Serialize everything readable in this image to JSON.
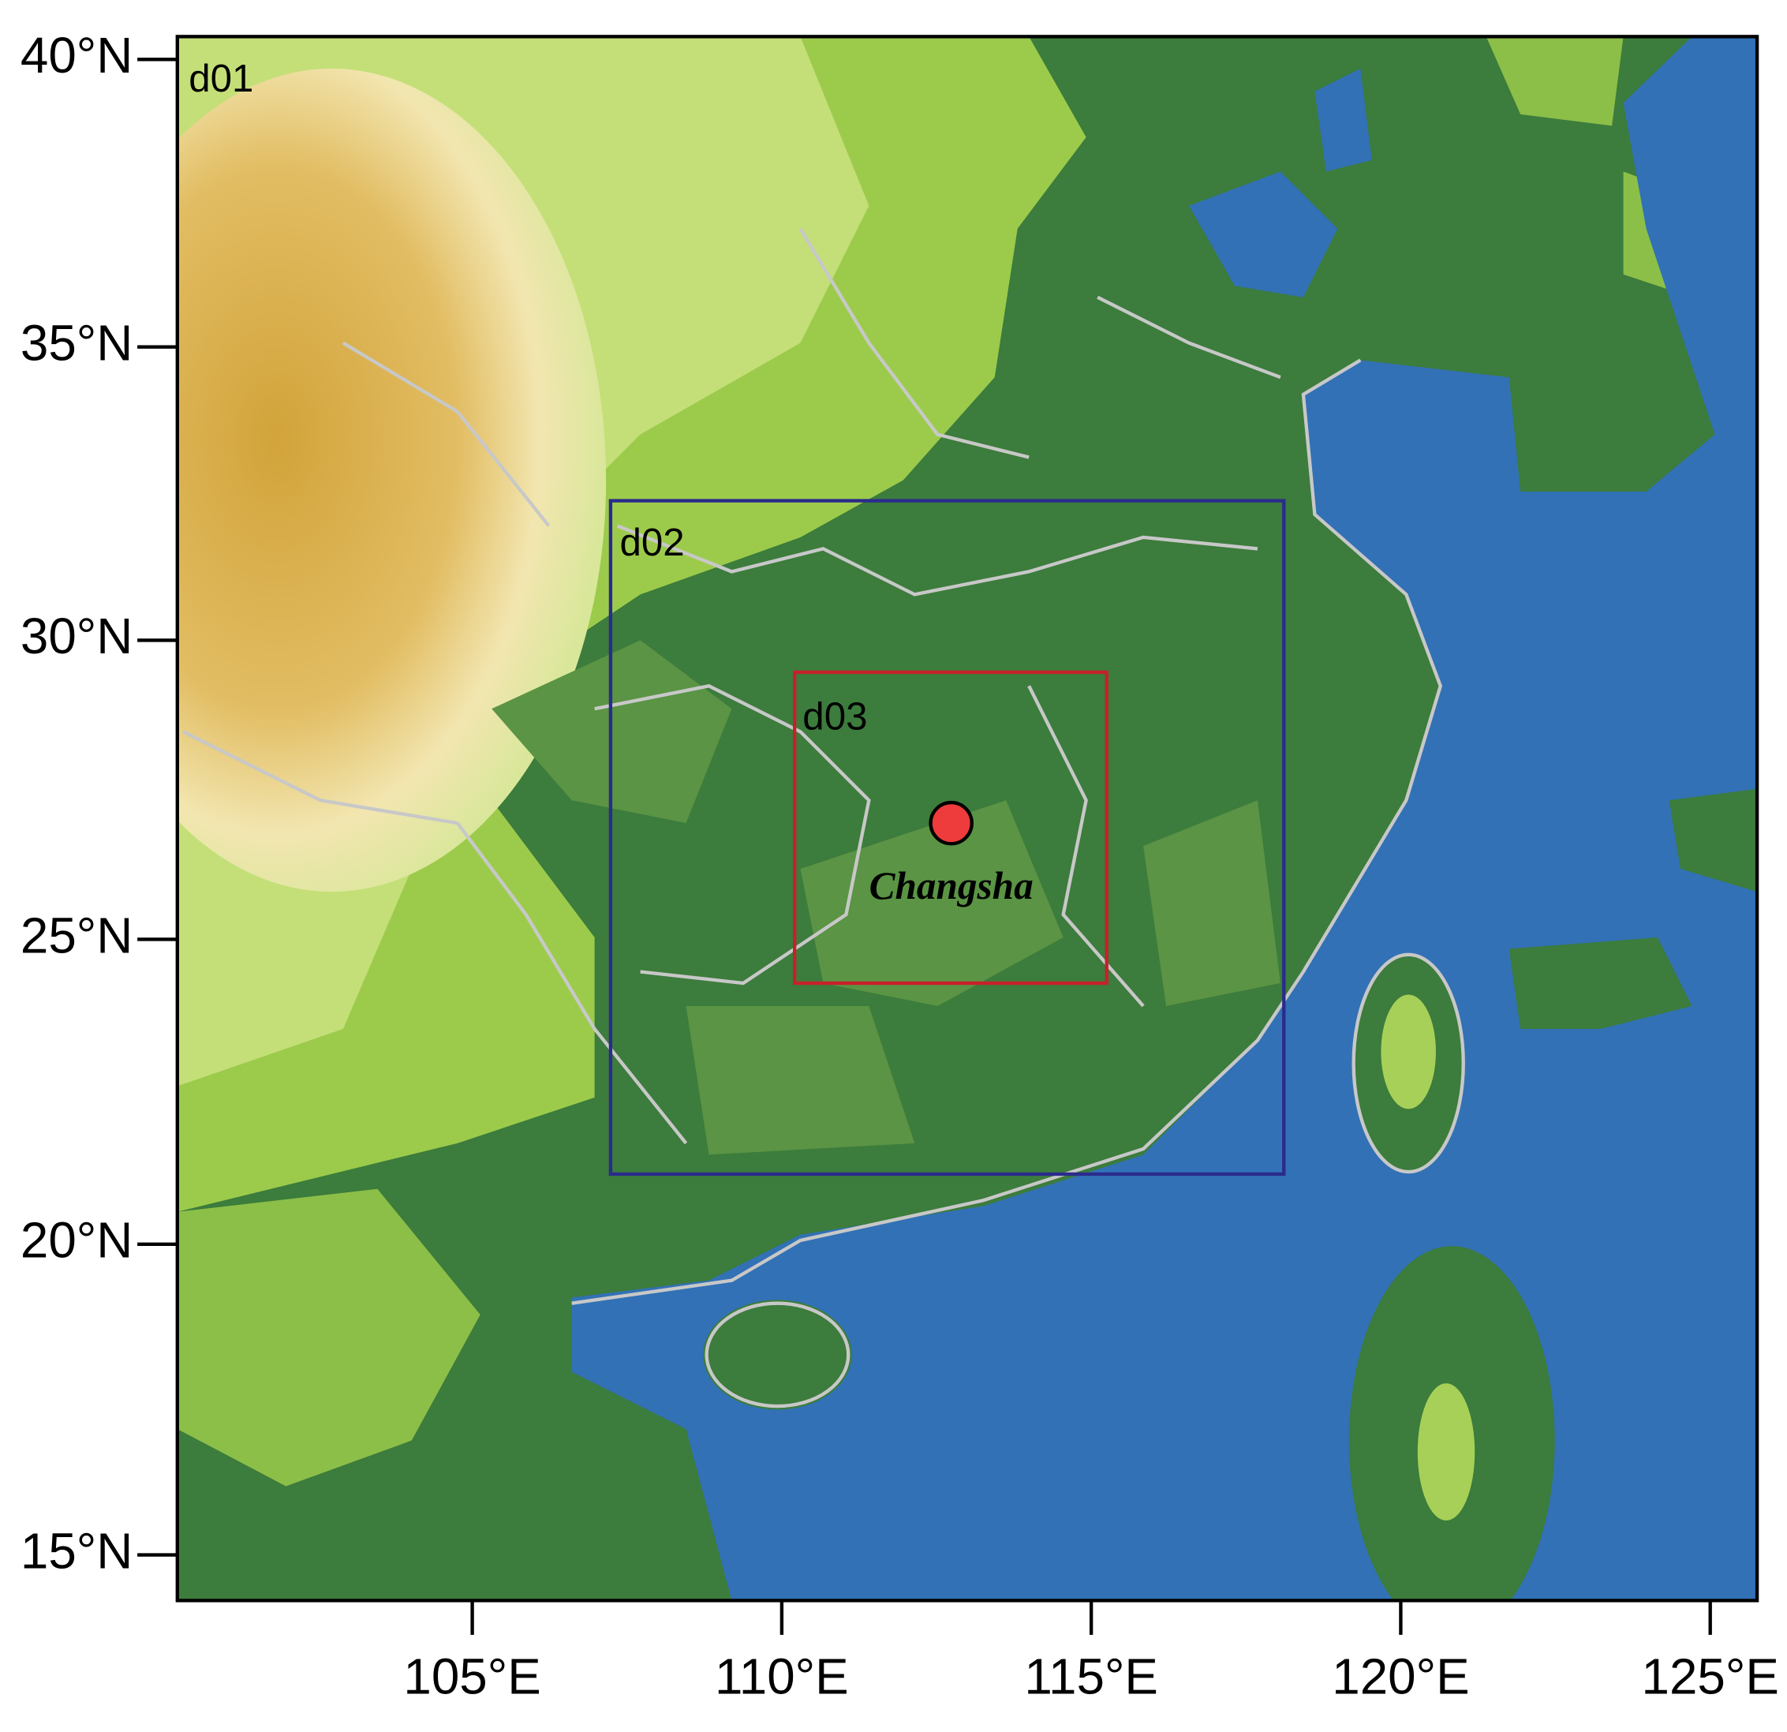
{
  "map": {
    "domains": [
      "d01",
      "d02",
      "d03"
    ],
    "city": "Changsha",
    "lat_ticks": [
      {
        "value": 40,
        "label": "40°N"
      },
      {
        "value": 35,
        "label": "35°N"
      },
      {
        "value": 30,
        "label": "30°N"
      },
      {
        "value": 25,
        "label": "25°N"
      },
      {
        "value": 20,
        "label": "20°N"
      },
      {
        "value": 15,
        "label": "15°N"
      }
    ],
    "lon_ticks": [
      {
        "value": 105,
        "label": "105°E"
      },
      {
        "value": 110,
        "label": "110°E"
      },
      {
        "value": 115,
        "label": "115°E"
      },
      {
        "value": 120,
        "label": "120°E"
      },
      {
        "value": 125,
        "label": "125°E"
      }
    ]
  }
}
